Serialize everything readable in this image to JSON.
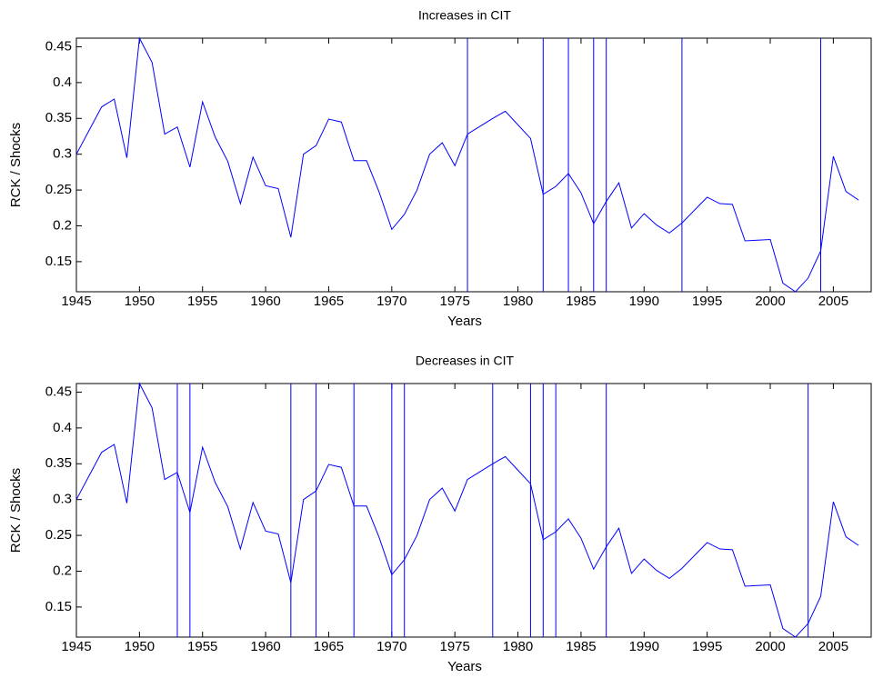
{
  "chart_data": [
    {
      "type": "line",
      "title": "Increases in CIT",
      "xlabel": "Years",
      "ylabel": "RCK / Shocks",
      "color": "#0000ff",
      "x": [
        1945,
        1946,
        1947,
        1948,
        1949,
        1950,
        1951,
        1952,
        1953,
        1954,
        1955,
        1956,
        1957,
        1958,
        1959,
        1960,
        1961,
        1962,
        1963,
        1964,
        1965,
        1966,
        1967,
        1968,
        1969,
        1970,
        1971,
        1972,
        1973,
        1974,
        1975,
        1976,
        1977,
        1978,
        1979,
        1980,
        1981,
        1982,
        1983,
        1984,
        1985,
        1986,
        1987,
        1988,
        1989,
        1990,
        1991,
        1992,
        1993,
        1994,
        1995,
        1996,
        1997,
        1998,
        1999,
        2000,
        2001,
        2002,
        2003,
        2004,
        2005,
        2006,
        2007
      ],
      "values": [
        0.3,
        0.333,
        0.366,
        0.377,
        0.295,
        0.462,
        0.428,
        0.328,
        0.338,
        0.282,
        0.373,
        0.324,
        0.29,
        0.231,
        0.296,
        0.256,
        0.252,
        0.184,
        0.3,
        0.312,
        0.349,
        0.345,
        0.291,
        0.291,
        0.247,
        0.195,
        0.216,
        0.25,
        0.3,
        0.316,
        0.284,
        0.328,
        0.339,
        0.35,
        0.36,
        0.341,
        0.322,
        0.244,
        0.255,
        0.273,
        0.246,
        0.203,
        0.234,
        0.26,
        0.197,
        0.217,
        0.201,
        0.19,
        0.204,
        0.222,
        0.24,
        0.231,
        0.23,
        0.179,
        0.18,
        0.181,
        0.12,
        0.108,
        0.127,
        0.165,
        0.297,
        0.248,
        0.236
      ],
      "shock_years": [
        1976,
        1982,
        1984,
        1986,
        1987,
        1993,
        2004
      ],
      "xlim": [
        1945,
        2008
      ],
      "ylim": [
        0.108,
        0.462
      ],
      "xticks": [
        1945,
        1950,
        1955,
        1960,
        1965,
        1970,
        1975,
        1980,
        1985,
        1990,
        1995,
        2000,
        2005
      ],
      "yticks": [
        0.15,
        0.2,
        0.25,
        0.3,
        0.35,
        0.4,
        0.45
      ]
    },
    {
      "type": "line",
      "title": "Decreases in CIT",
      "xlabel": "Years",
      "ylabel": "RCK / Shocks",
      "color": "#0000ff",
      "x": [
        1945,
        1946,
        1947,
        1948,
        1949,
        1950,
        1951,
        1952,
        1953,
        1954,
        1955,
        1956,
        1957,
        1958,
        1959,
        1960,
        1961,
        1962,
        1963,
        1964,
        1965,
        1966,
        1967,
        1968,
        1969,
        1970,
        1971,
        1972,
        1973,
        1974,
        1975,
        1976,
        1977,
        1978,
        1979,
        1980,
        1981,
        1982,
        1983,
        1984,
        1985,
        1986,
        1987,
        1988,
        1989,
        1990,
        1991,
        1992,
        1993,
        1994,
        1995,
        1996,
        1997,
        1998,
        1999,
        2000,
        2001,
        2002,
        2003,
        2004,
        2005,
        2006,
        2007
      ],
      "values": [
        0.3,
        0.333,
        0.366,
        0.377,
        0.295,
        0.462,
        0.428,
        0.328,
        0.338,
        0.282,
        0.373,
        0.324,
        0.29,
        0.231,
        0.296,
        0.256,
        0.252,
        0.184,
        0.3,
        0.312,
        0.349,
        0.345,
        0.291,
        0.291,
        0.247,
        0.195,
        0.216,
        0.25,
        0.3,
        0.316,
        0.284,
        0.328,
        0.339,
        0.35,
        0.36,
        0.341,
        0.322,
        0.244,
        0.255,
        0.273,
        0.246,
        0.203,
        0.234,
        0.26,
        0.197,
        0.217,
        0.201,
        0.19,
        0.204,
        0.222,
        0.24,
        0.231,
        0.23,
        0.179,
        0.18,
        0.181,
        0.12,
        0.108,
        0.127,
        0.165,
        0.297,
        0.248,
        0.236
      ],
      "shock_years": [
        1953,
        1954,
        1962,
        1964,
        1967,
        1970,
        1971,
        1978,
        1981,
        1982,
        1983,
        1987,
        2003
      ],
      "xlim": [
        1945,
        2008
      ],
      "ylim": [
        0.108,
        0.462
      ],
      "xticks": [
        1945,
        1950,
        1955,
        1960,
        1965,
        1970,
        1975,
        1980,
        1985,
        1990,
        1995,
        2000,
        2005
      ],
      "yticks": [
        0.15,
        0.2,
        0.25,
        0.3,
        0.35,
        0.4,
        0.45
      ]
    }
  ]
}
